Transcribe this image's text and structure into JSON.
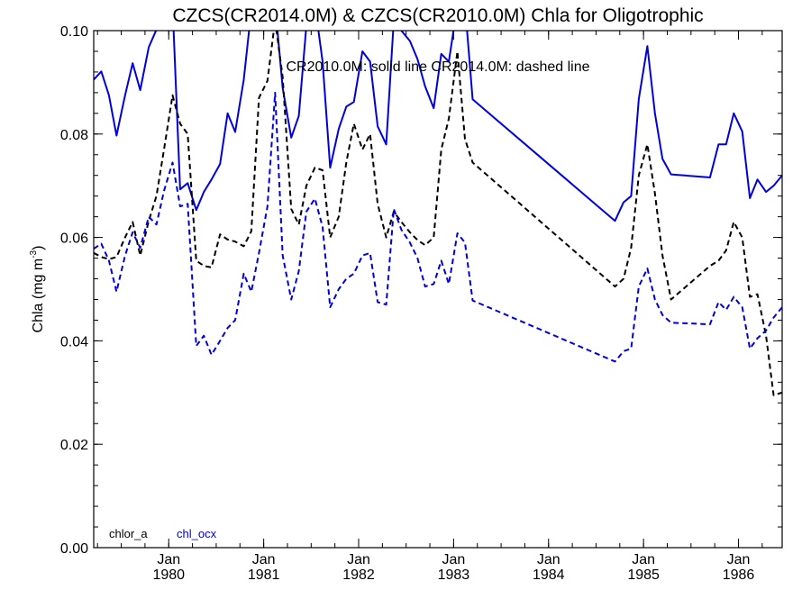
{
  "chart_data": {
    "type": "line",
    "title": "CZCS(CR2014.0M) & CZCS(CR2010.0M)  Chla for Oligotrophic",
    "annotation": "CR2010.0M: solid line   CR2014.0M: dashed line",
    "ylabel_main": "Chla (mg m",
    "ylabel_sup": "-3",
    "ylabel_close": ")",
    "ylim": [
      0.0,
      0.1
    ],
    "xlim": [
      1979.21,
      1986.46
    ],
    "yticks": [
      {
        "value": 0.0,
        "label": "0.00"
      },
      {
        "value": 0.02,
        "label": "0.02"
      },
      {
        "value": 0.04,
        "label": "0.04"
      },
      {
        "value": 0.06,
        "label": "0.06"
      },
      {
        "value": 0.08,
        "label": "0.08"
      },
      {
        "value": 0.1,
        "label": "0.10"
      }
    ],
    "xticks": [
      {
        "value": 1980.0,
        "month": "Jan",
        "year": "1980"
      },
      {
        "value": 1981.0,
        "month": "Jan",
        "year": "1981"
      },
      {
        "value": 1982.0,
        "month": "Jan",
        "year": "1982"
      },
      {
        "value": 1983.0,
        "month": "Jan",
        "year": "1983"
      },
      {
        "value": 1984.0,
        "month": "Jan",
        "year": "1984"
      },
      {
        "value": 1985.0,
        "month": "Jan",
        "year": "1985"
      },
      {
        "value": 1986.0,
        "month": "Jan",
        "year": "1986"
      }
    ],
    "legend": [
      {
        "label": "chlor_a",
        "color": "#000000"
      },
      {
        "label": "chl_ocx",
        "color": "#0000dd"
      }
    ],
    "series": [
      {
        "name": "chl_ocx",
        "style": "solid",
        "color": "#0000dd",
        "points": [
          [
            1979.21,
            0.0905
          ],
          [
            1979.29,
            0.0921
          ],
          [
            1979.37,
            0.0875
          ],
          [
            1979.45,
            0.0797
          ],
          [
            1979.54,
            0.0875
          ],
          [
            1979.62,
            0.0937
          ],
          [
            1979.7,
            0.0885
          ],
          [
            1979.79,
            0.0968
          ],
          [
            1979.87,
            0.1002
          ],
          [
            1979.95,
            0.105
          ],
          [
            1980.04,
            0.105
          ],
          [
            1980.12,
            0.0693
          ],
          [
            1980.2,
            0.0705
          ],
          [
            1980.29,
            0.0653
          ],
          [
            1980.37,
            0.0688
          ],
          [
            1980.45,
            0.0712
          ],
          [
            1980.54,
            0.0742
          ],
          [
            1980.62,
            0.084
          ],
          [
            1980.7,
            0.0804
          ],
          [
            1980.79,
            0.0905
          ],
          [
            1980.87,
            0.104
          ],
          [
            1980.95,
            0.105
          ],
          [
            1981.04,
            0.105
          ],
          [
            1981.12,
            0.105
          ],
          [
            1981.2,
            0.0889
          ],
          [
            1981.29,
            0.0793
          ],
          [
            1981.37,
            0.0835
          ],
          [
            1981.45,
            0.101
          ],
          [
            1981.54,
            0.105
          ],
          [
            1981.62,
            0.094
          ],
          [
            1981.7,
            0.0735
          ],
          [
            1981.79,
            0.081
          ],
          [
            1981.87,
            0.0853
          ],
          [
            1981.95,
            0.0862
          ],
          [
            1982.04,
            0.096
          ],
          [
            1982.12,
            0.094
          ],
          [
            1982.2,
            0.0815
          ],
          [
            1982.29,
            0.078
          ],
          [
            1982.37,
            0.102
          ],
          [
            1982.45,
            0.1
          ],
          [
            1982.54,
            0.098
          ],
          [
            1982.62,
            0.0945
          ],
          [
            1982.7,
            0.0892
          ],
          [
            1982.79,
            0.085
          ],
          [
            1982.87,
            0.0955
          ],
          [
            1982.95,
            0.094
          ],
          [
            1983.04,
            0.105
          ],
          [
            1983.12,
            0.105
          ],
          [
            1983.2,
            0.0867
          ],
          [
            1984.7,
            0.0632
          ],
          [
            1984.79,
            0.0668
          ],
          [
            1984.87,
            0.068
          ],
          [
            1984.95,
            0.0868
          ],
          [
            1985.04,
            0.097
          ],
          [
            1985.12,
            0.084
          ],
          [
            1985.2,
            0.0752
          ],
          [
            1985.29,
            0.0722
          ],
          [
            1985.7,
            0.0716
          ],
          [
            1985.79,
            0.078
          ],
          [
            1985.87,
            0.078
          ],
          [
            1985.95,
            0.084
          ],
          [
            1986.04,
            0.0805
          ],
          [
            1986.12,
            0.0676
          ],
          [
            1986.2,
            0.0712
          ],
          [
            1986.29,
            0.0688
          ],
          [
            1986.37,
            0.07
          ],
          [
            1986.46,
            0.072
          ]
        ]
      },
      {
        "name": "chlor_a",
        "style": "dashed",
        "color": "#000000",
        "points": [
          [
            1979.21,
            0.057
          ],
          [
            1979.29,
            0.0562
          ],
          [
            1979.37,
            0.0558
          ],
          [
            1979.45,
            0.0562
          ],
          [
            1979.54,
            0.06
          ],
          [
            1979.62,
            0.063
          ],
          [
            1979.7,
            0.0565
          ],
          [
            1979.79,
            0.0632
          ],
          [
            1979.87,
            0.068
          ],
          [
            1979.95,
            0.077
          ],
          [
            1980.04,
            0.0875
          ],
          [
            1980.12,
            0.082
          ],
          [
            1980.2,
            0.08
          ],
          [
            1980.29,
            0.0555
          ],
          [
            1980.37,
            0.0545
          ],
          [
            1980.45,
            0.0542
          ],
          [
            1980.54,
            0.0606
          ],
          [
            1980.62,
            0.0596
          ],
          [
            1980.7,
            0.0592
          ],
          [
            1980.79,
            0.0583
          ],
          [
            1980.87,
            0.0612
          ],
          [
            1980.95,
            0.087
          ],
          [
            1981.04,
            0.0903
          ],
          [
            1981.12,
            0.102
          ],
          [
            1981.2,
            0.091
          ],
          [
            1981.29,
            0.0655
          ],
          [
            1981.37,
            0.0625
          ],
          [
            1981.45,
            0.07
          ],
          [
            1981.54,
            0.0735
          ],
          [
            1981.62,
            0.073
          ],
          [
            1981.7,
            0.06
          ],
          [
            1981.79,
            0.064
          ],
          [
            1981.87,
            0.0745
          ],
          [
            1981.95,
            0.082
          ],
          [
            1982.04,
            0.077
          ],
          [
            1982.12,
            0.08
          ],
          [
            1982.2,
            0.0665
          ],
          [
            1982.29,
            0.06
          ],
          [
            1982.37,
            0.065
          ],
          [
            1982.45,
            0.063
          ],
          [
            1982.54,
            0.061
          ],
          [
            1982.62,
            0.0595
          ],
          [
            1982.7,
            0.0585
          ],
          [
            1982.79,
            0.06
          ],
          [
            1982.87,
            0.077
          ],
          [
            1982.95,
            0.083
          ],
          [
            1983.04,
            0.096
          ],
          [
            1983.12,
            0.079
          ],
          [
            1983.2,
            0.0745
          ],
          [
            1984.7,
            0.0505
          ],
          [
            1984.79,
            0.052
          ],
          [
            1984.87,
            0.058
          ],
          [
            1984.95,
            0.072
          ],
          [
            1985.04,
            0.078
          ],
          [
            1985.12,
            0.0685
          ],
          [
            1985.2,
            0.0565
          ],
          [
            1985.29,
            0.048
          ],
          [
            1985.7,
            0.0545
          ],
          [
            1985.79,
            0.0555
          ],
          [
            1985.87,
            0.0575
          ],
          [
            1985.95,
            0.063
          ],
          [
            1986.04,
            0.06
          ],
          [
            1986.12,
            0.0485
          ],
          [
            1986.2,
            0.049
          ],
          [
            1986.29,
            0.041
          ],
          [
            1986.37,
            0.0295
          ],
          [
            1986.46,
            0.03
          ]
        ]
      },
      {
        "name": "chl_ocx",
        "style": "dashed",
        "color": "#0000dd",
        "points": [
          [
            1979.21,
            0.0578
          ],
          [
            1979.29,
            0.0588
          ],
          [
            1979.37,
            0.0555
          ],
          [
            1979.45,
            0.0495
          ],
          [
            1979.54,
            0.0565
          ],
          [
            1979.62,
            0.061
          ],
          [
            1979.7,
            0.058
          ],
          [
            1979.79,
            0.064
          ],
          [
            1979.87,
            0.0625
          ],
          [
            1979.95,
            0.069
          ],
          [
            1980.04,
            0.0745
          ],
          [
            1980.12,
            0.066
          ],
          [
            1980.2,
            0.0665
          ],
          [
            1980.29,
            0.039
          ],
          [
            1980.37,
            0.041
          ],
          [
            1980.45,
            0.0373
          ],
          [
            1980.54,
            0.04
          ],
          [
            1980.62,
            0.0425
          ],
          [
            1980.7,
            0.044
          ],
          [
            1980.79,
            0.053
          ],
          [
            1980.87,
            0.0495
          ],
          [
            1980.95,
            0.057
          ],
          [
            1981.04,
            0.066
          ],
          [
            1981.12,
            0.088
          ],
          [
            1981.2,
            0.0565
          ],
          [
            1981.29,
            0.048
          ],
          [
            1981.37,
            0.0535
          ],
          [
            1981.45,
            0.065
          ],
          [
            1981.54,
            0.0675
          ],
          [
            1981.62,
            0.062
          ],
          [
            1981.7,
            0.0465
          ],
          [
            1981.79,
            0.05
          ],
          [
            1981.87,
            0.052
          ],
          [
            1981.95,
            0.053
          ],
          [
            1982.04,
            0.0565
          ],
          [
            1982.12,
            0.057
          ],
          [
            1982.2,
            0.0475
          ],
          [
            1982.29,
            0.047
          ],
          [
            1982.37,
            0.0655
          ],
          [
            1982.45,
            0.0615
          ],
          [
            1982.54,
            0.059
          ],
          [
            1982.62,
            0.056
          ],
          [
            1982.7,
            0.0505
          ],
          [
            1982.79,
            0.051
          ],
          [
            1982.87,
            0.0555
          ],
          [
            1982.95,
            0.051
          ],
          [
            1983.04,
            0.0608
          ],
          [
            1983.12,
            0.059
          ],
          [
            1983.2,
            0.0478
          ],
          [
            1984.7,
            0.036
          ],
          [
            1984.79,
            0.038
          ],
          [
            1984.87,
            0.0385
          ],
          [
            1984.95,
            0.0505
          ],
          [
            1985.04,
            0.054
          ],
          [
            1985.12,
            0.048
          ],
          [
            1985.2,
            0.045
          ],
          [
            1985.29,
            0.0435
          ],
          [
            1985.7,
            0.0432
          ],
          [
            1985.79,
            0.0475
          ],
          [
            1985.87,
            0.046
          ],
          [
            1985.95,
            0.0485
          ],
          [
            1986.04,
            0.0465
          ],
          [
            1986.12,
            0.0385
          ],
          [
            1986.2,
            0.0405
          ],
          [
            1986.29,
            0.042
          ],
          [
            1986.37,
            0.0445
          ],
          [
            1986.46,
            0.0465
          ]
        ]
      }
    ]
  }
}
